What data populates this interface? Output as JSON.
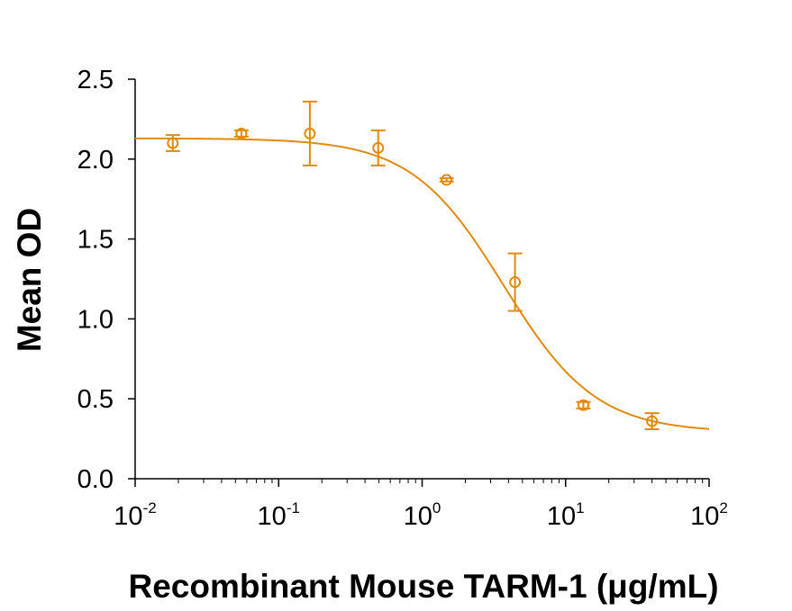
{
  "chart_data": {
    "type": "scatter",
    "xlabel": "Recombinant Mouse TARM-1 (μg/mL)",
    "ylabel": "Mean OD",
    "x_scale": "log",
    "xlim": [
      0.01,
      100
    ],
    "ylim": [
      0.0,
      2.5
    ],
    "x_ticks": [
      {
        "base": "10",
        "exp": "-2",
        "value": 0.01
      },
      {
        "base": "10",
        "exp": "-1",
        "value": 0.1
      },
      {
        "base": "10",
        "exp": "0",
        "value": 1
      },
      {
        "base": "10",
        "exp": "1",
        "value": 10
      },
      {
        "base": "10",
        "exp": "2",
        "value": 100
      }
    ],
    "y_ticks": [
      "0.0",
      "0.5",
      "1.0",
      "1.5",
      "2.0",
      "2.5"
    ],
    "grid": false,
    "legend": "none",
    "color": "#E08A0E",
    "series": [
      {
        "x": [
          0.0183,
          0.055,
          0.165,
          0.494,
          1.48,
          4.44,
          13.3,
          40.0
        ],
        "y": [
          2.1,
          2.16,
          2.16,
          2.07,
          1.87,
          1.23,
          0.46,
          0.36
        ],
        "error": [
          0.05,
          0.02,
          0.2,
          0.11,
          0.01,
          0.18,
          0.02,
          0.05
        ]
      }
    ],
    "fit_curve": {
      "type": "4PL",
      "top": 2.13,
      "bottom": 0.29,
      "ec50": 3.7,
      "hill": 1.35
    }
  }
}
